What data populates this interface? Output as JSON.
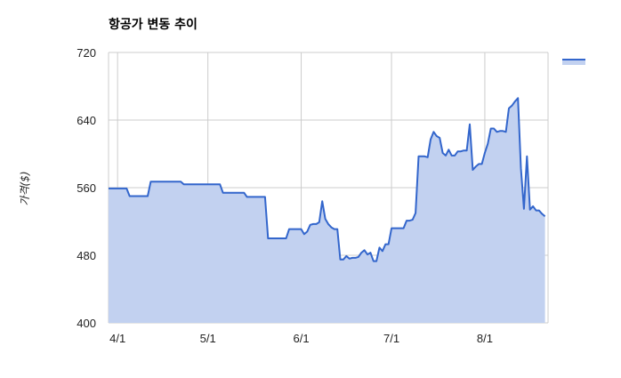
{
  "chart_data": {
    "type": "area",
    "title": "항공가 변동 추이",
    "xlabel": "",
    "ylabel": "가격($)",
    "ylim": [
      400,
      720
    ],
    "yticks": [
      "400",
      "480",
      "560",
      "640",
      "720"
    ],
    "xticks": [
      {
        "label": "4/1",
        "day": 2
      },
      {
        "label": "5/1",
        "day": 32
      },
      {
        "label": "6/1",
        "day": 63
      },
      {
        "label": "7/1",
        "day": 93
      },
      {
        "label": "8/1",
        "day": 124
      }
    ],
    "x_domain": [
      -1,
      145
    ],
    "grid": true,
    "legend": "right",
    "series": [
      {
        "color": "#3366cc",
        "fill": "#c2d1f0",
        "points": [
          [
            -1,
            559
          ],
          [
            5,
            559
          ],
          [
            6,
            550
          ],
          [
            12,
            550
          ],
          [
            13,
            567
          ],
          [
            23,
            567
          ],
          [
            24,
            564
          ],
          [
            36,
            564
          ],
          [
            37,
            554
          ],
          [
            44,
            554
          ],
          [
            45,
            549
          ],
          [
            51,
            549
          ],
          [
            52,
            500
          ],
          [
            58,
            500
          ],
          [
            59,
            511
          ],
          [
            63,
            511
          ],
          [
            64,
            505
          ],
          [
            65,
            508
          ],
          [
            66,
            516
          ],
          [
            67,
            517
          ],
          [
            68,
            517
          ],
          [
            69,
            519
          ],
          [
            70,
            544
          ],
          [
            71,
            523
          ],
          [
            72,
            517
          ],
          [
            73,
            513
          ],
          [
            74,
            511
          ],
          [
            75,
            511
          ],
          [
            76,
            475
          ],
          [
            77,
            475
          ],
          [
            78,
            479
          ],
          [
            79,
            476
          ],
          [
            80,
            477
          ],
          [
            81,
            477
          ],
          [
            82,
            478
          ],
          [
            83,
            483
          ],
          [
            84,
            486
          ],
          [
            85,
            481
          ],
          [
            86,
            483
          ],
          [
            87,
            473
          ],
          [
            88,
            473
          ],
          [
            89,
            489
          ],
          [
            90,
            485
          ],
          [
            91,
            493
          ],
          [
            92,
            493
          ],
          [
            93,
            512
          ],
          [
            97,
            512
          ],
          [
            98,
            521
          ],
          [
            99,
            521
          ],
          [
            100,
            522
          ],
          [
            101,
            530
          ],
          [
            102,
            597
          ],
          [
            104,
            597
          ],
          [
            105,
            596
          ],
          [
            106,
            617
          ],
          [
            107,
            626
          ],
          [
            108,
            621
          ],
          [
            109,
            619
          ],
          [
            110,
            601
          ],
          [
            111,
            598
          ],
          [
            112,
            605
          ],
          [
            113,
            598
          ],
          [
            114,
            598
          ],
          [
            115,
            603
          ],
          [
            116,
            603
          ],
          [
            117,
            604
          ],
          [
            118,
            604
          ],
          [
            119,
            635
          ],
          [
            120,
            581
          ],
          [
            121,
            585
          ],
          [
            122,
            588
          ],
          [
            123,
            588
          ],
          [
            124,
            601
          ],
          [
            125,
            612
          ],
          [
            126,
            630
          ],
          [
            127,
            630
          ],
          [
            128,
            626
          ],
          [
            129,
            627
          ],
          [
            130,
            627
          ],
          [
            131,
            626
          ],
          [
            132,
            654
          ],
          [
            133,
            657
          ],
          [
            134,
            662
          ],
          [
            135,
            666
          ],
          [
            136,
            583
          ],
          [
            137,
            535
          ],
          [
            138,
            597
          ],
          [
            139,
            534
          ],
          [
            140,
            538
          ],
          [
            141,
            533
          ],
          [
            142,
            533
          ],
          [
            143,
            529
          ],
          [
            144,
            526
          ]
        ]
      }
    ]
  }
}
